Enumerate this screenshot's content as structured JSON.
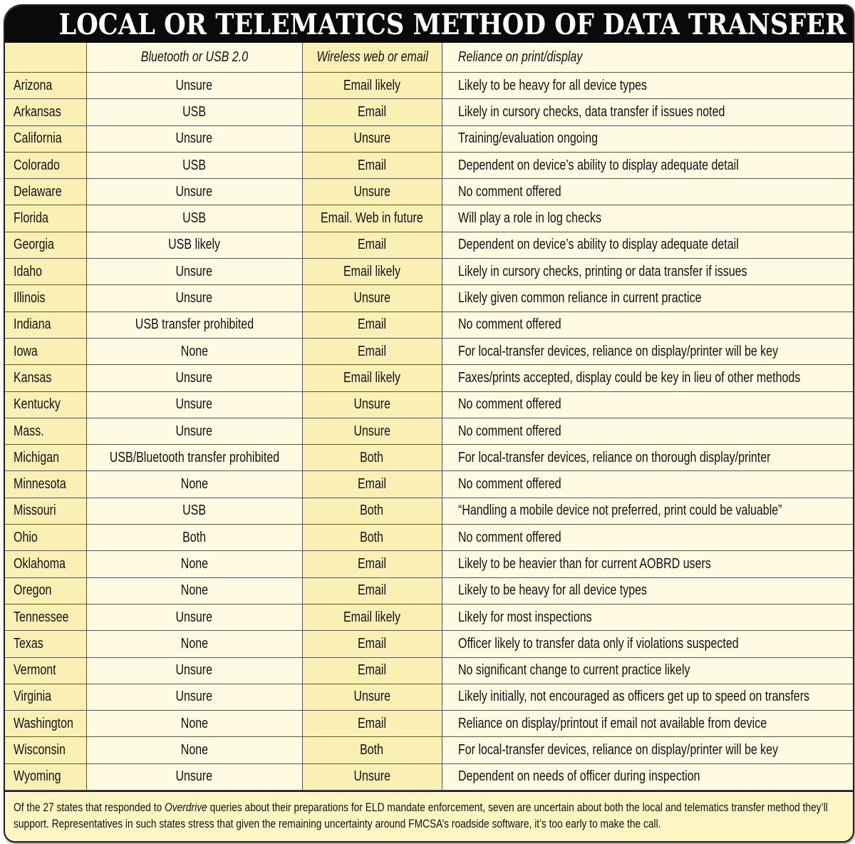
{
  "title": "LOCAL OR TELEMATICS METHOD OF DATA TRANSFER",
  "columns": [
    "",
    "Bluetooth or USB 2.0",
    "Wireless web or email",
    "Reliance on print/display"
  ],
  "rows": [
    [
      "Arizona",
      "Unsure",
      "Email likely",
      "Likely to be heavy for all device types"
    ],
    [
      "Arkansas",
      "USB",
      "Email",
      "Likely in cursory checks, data transfer if issues noted"
    ],
    [
      "California",
      "Unsure",
      "Unsure",
      "Training/evaluation ongoing"
    ],
    [
      "Colorado",
      "USB",
      "Email",
      "Dependent on device’s ability to display adequate detail"
    ],
    [
      "Delaware",
      "Unsure",
      "Unsure",
      "No comment offered"
    ],
    [
      "Florida",
      "USB",
      "Email. Web in future",
      "Will play a role in log checks"
    ],
    [
      "Georgia",
      "USB likely",
      "Email",
      "Dependent on device’s ability to display adequate detail"
    ],
    [
      "Idaho",
      "Unsure",
      "Email likely",
      "Likely in cursory checks, printing or data transfer if issues"
    ],
    [
      "Illinois",
      "Unsure",
      "Unsure",
      "Likely given common reliance in current practice"
    ],
    [
      "Indiana",
      "USB transfer prohibited",
      "Email",
      "No comment offered"
    ],
    [
      "Iowa",
      "None",
      "Email",
      "For local-transfer devices, reliance on display/printer will be key"
    ],
    [
      "Kansas",
      "Unsure",
      "Email likely",
      "Faxes/prints accepted, display could be key in lieu of other methods"
    ],
    [
      "Kentucky",
      "Unsure",
      "Unsure",
      "No comment offered"
    ],
    [
      "Mass.",
      "Unsure",
      "Unsure",
      "No comment offered"
    ],
    [
      "Michigan",
      "USB/Bluetooth transfer prohibited",
      "Both",
      "For local-transfer devices, reliance on thorough display/printer"
    ],
    [
      "Minnesota",
      "None",
      "Email",
      "No comment offered"
    ],
    [
      "Missouri",
      "USB",
      "Both",
      "“Handling a mobile device not preferred, print could be valuable”"
    ],
    [
      "Ohio",
      "Both",
      "Both",
      "No comment offered"
    ],
    [
      "Oklahoma",
      "None",
      "Email",
      "Likely to be heavier than for current AOBRD users"
    ],
    [
      "Oregon",
      "None",
      "Email",
      "Likely to be heavy for all device types"
    ],
    [
      "Tennessee",
      "Unsure",
      "Email likely",
      "Likely for most inspections"
    ],
    [
      "Texas",
      "None",
      "Email",
      "Officer likely to transfer data only if violations suspected"
    ],
    [
      "Vermont",
      "Unsure",
      "Email",
      "No significant change to current practice likely"
    ],
    [
      "Virginia",
      "Unsure",
      "Unsure",
      "Likely initially, not encouraged as officers get up to speed on transfers"
    ],
    [
      "Washington",
      "None",
      "Email",
      "Reliance on display/printout if email not available from device"
    ],
    [
      "Wisconsin",
      "None",
      "Both",
      "For local-transfer devices, reliance on display/printer will be key"
    ],
    [
      "Wyoming",
      "Unsure",
      "Unsure",
      "Dependent on needs of officer during inspection"
    ]
  ],
  "footer": {
    "before": "Of the 27 states that responded to ",
    "italic": "Overdrive",
    "after": " queries about their preparations for ELD mandate enforcement, seven are uncertain about both the local and telematics transfer method they’ll support. Representatives in such states stress that given the remaining uncertainty around FMCSA’s roadside software, it’s too early to make the call."
  }
}
